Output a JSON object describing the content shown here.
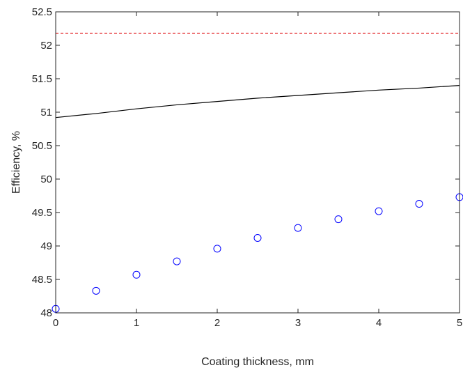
{
  "chart_data": {
    "type": "line",
    "title": "",
    "xlabel": "Coating thickness, mm",
    "ylabel": "Efficiency, %",
    "xlim": [
      0,
      5
    ],
    "ylim": [
      48,
      52.5
    ],
    "x_ticks": [
      0,
      1,
      2,
      3,
      4,
      5
    ],
    "y_ticks": [
      48,
      48.5,
      49,
      49.5,
      50,
      50.5,
      51,
      51.5,
      52,
      52.5
    ],
    "x_tick_labels": [
      "0",
      "1",
      "2",
      "3",
      "4",
      "5"
    ],
    "y_tick_labels": [
      "48",
      "48.5",
      "49",
      "49.5",
      "50",
      "50.5",
      "51",
      "51.5",
      "52",
      "52.5"
    ],
    "grid": false,
    "box": true,
    "series": [
      {
        "style": "dashed-line",
        "color": "#e31a1c",
        "x": [
          0,
          5
        ],
        "y": [
          52.18,
          52.18
        ]
      },
      {
        "style": "solid-line",
        "color": "#000000",
        "x": [
          0,
          0.5,
          1,
          1.5,
          2,
          2.5,
          3,
          3.5,
          4,
          4.5,
          5
        ],
        "y": [
          50.92,
          50.98,
          51.05,
          51.11,
          51.16,
          51.21,
          51.25,
          51.29,
          51.33,
          51.36,
          51.4
        ]
      },
      {
        "style": "circle-markers",
        "color": "#0000ff",
        "x": [
          0,
          0.5,
          1,
          1.5,
          2,
          2.5,
          3,
          3.5,
          4,
          4.5,
          5
        ],
        "y": [
          48.06,
          48.33,
          48.57,
          48.77,
          48.96,
          49.12,
          49.27,
          49.4,
          49.52,
          49.63,
          49.73
        ]
      }
    ]
  }
}
